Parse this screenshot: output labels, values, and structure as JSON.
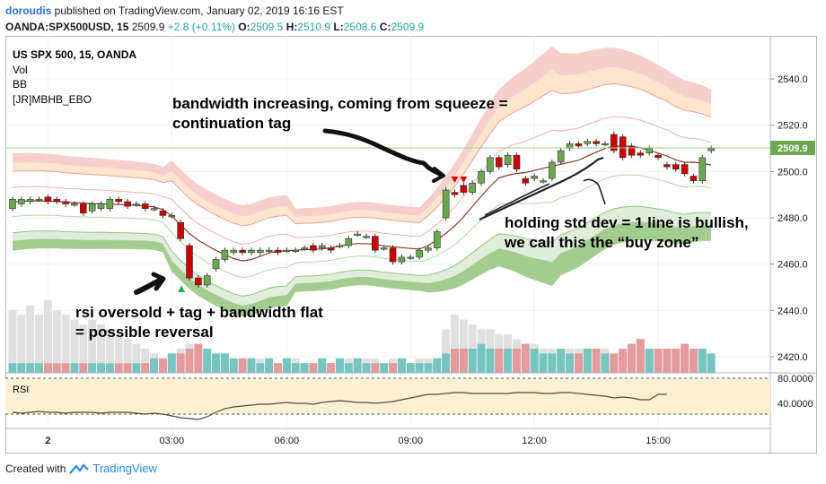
{
  "header": {
    "username": "doroudis",
    "published_text": "published on TradingView.com, January 02, 2019 16:16 EST",
    "symbol": "OANDA:SPX500USD, 15",
    "last": "2509.9",
    "change": "+2.8 (+0.11%)",
    "o_label": "O:",
    "o_value": "2509.5",
    "h_label": "H:",
    "h_value": "2510.9",
    "l_label": "L:",
    "l_value": "2508.6",
    "c_label": "C:",
    "c_value": "2509.9"
  },
  "legend": {
    "title": "US SPX 500, 15, OANDA",
    "items": [
      "Vol",
      "BB",
      "[JR]MBHB_EBO"
    ]
  },
  "annotations": [
    {
      "text": "bandwidth increasing, coming from squeeze =",
      "id": "a1"
    },
    {
      "text": "continuation tag",
      "id": "a2"
    },
    {
      "text": "holding std dev = 1 line is bullish,",
      "id": "a3"
    },
    {
      "text": "we call this the “buy zone”",
      "id": "a4"
    },
    {
      "text": "rsi oversold + tag + bandwidth flat",
      "id": "a5"
    },
    {
      "text": "= possible reversal",
      "id": "a6"
    }
  ],
  "rsi_label": "RSI",
  "price_badge": "2509.9",
  "footer": {
    "created": "Created with",
    "brand": "TradingView"
  },
  "colors": {
    "up": "#6aa84f",
    "down": "#cc0000",
    "outer_upper": "#f4c7c3",
    "inner_upper": "#fde2c4",
    "outer_lower": "#93c47d",
    "inner_lower": "#d9ead3",
    "basis": "#8b3a2e",
    "badge": "#6aa84f",
    "rsi_bg": "#fbf1d2"
  },
  "chart_data": {
    "type": "candlestick",
    "title": "US SPX 500, 15, OANDA",
    "y_axis": {
      "ticks": [
        2540.0,
        2520.0,
        2500.0,
        2480.0,
        2460.0,
        2440.0,
        2420.0
      ],
      "range": [
        2415,
        2548
      ]
    },
    "x_axis": {
      "ticks": [
        "2",
        "03:00",
        "06:00",
        "09:00",
        "12:00",
        "15:00"
      ]
    },
    "rsi": {
      "levels": [
        80.0,
        40.0
      ],
      "tick_labels": [
        "80.0000",
        "40.0000"
      ],
      "values": [
        42,
        41,
        42,
        43,
        42,
        42,
        41,
        42,
        42,
        42,
        41,
        42,
        42,
        42,
        41,
        40,
        41,
        40,
        38,
        36,
        35,
        34,
        37,
        42,
        46,
        48,
        49,
        50,
        51,
        51,
        52,
        53,
        52,
        52,
        51,
        53,
        54,
        55,
        54,
        53,
        53,
        52,
        53,
        54,
        56,
        58,
        60,
        62,
        62,
        63,
        64,
        64,
        63,
        63,
        63,
        63,
        63,
        64,
        64,
        64,
        63,
        63,
        64,
        64,
        63,
        62,
        61,
        60,
        58,
        59,
        58,
        56,
        56,
        62,
        62
      ]
    },
    "candles": [
      {
        "o": 2484,
        "c": 2488
      },
      {
        "o": 2486,
        "c": 2488
      },
      {
        "o": 2487,
        "c": 2488
      },
      {
        "o": 2488,
        "c": 2488
      },
      {
        "o": 2489,
        "c": 2487
      },
      {
        "o": 2488,
        "c": 2487
      },
      {
        "o": 2487,
        "c": 2486
      },
      {
        "o": 2486,
        "c": 2486
      },
      {
        "o": 2486,
        "c": 2482
      },
      {
        "o": 2483,
        "c": 2486
      },
      {
        "o": 2484,
        "c": 2486
      },
      {
        "o": 2484,
        "c": 2488
      },
      {
        "o": 2488,
        "c": 2487
      },
      {
        "o": 2487,
        "c": 2485
      },
      {
        "o": 2486,
        "c": 2486
      },
      {
        "o": 2486,
        "c": 2484
      },
      {
        "o": 2484,
        "c": 2484
      },
      {
        "o": 2483,
        "c": 2481
      },
      {
        "o": 2481,
        "c": 2481
      },
      {
        "o": 2478,
        "c": 2471
      },
      {
        "o": 2468,
        "c": 2454
      },
      {
        "o": 2454,
        "c": 2451
      },
      {
        "o": 2451,
        "c": 2455
      },
      {
        "o": 2458,
        "c": 2462
      },
      {
        "o": 2462,
        "c": 2466
      },
      {
        "o": 2465,
        "c": 2466
      },
      {
        "o": 2466,
        "c": 2465
      },
      {
        "o": 2465,
        "c": 2466
      },
      {
        "o": 2465,
        "c": 2466
      },
      {
        "o": 2466,
        "c": 2466
      },
      {
        "o": 2466,
        "c": 2465
      },
      {
        "o": 2466,
        "c": 2466
      },
      {
        "o": 2466,
        "c": 2466
      },
      {
        "o": 2467,
        "c": 2467
      },
      {
        "o": 2468,
        "c": 2466
      },
      {
        "o": 2467,
        "c": 2468
      },
      {
        "o": 2467,
        "c": 2466
      },
      {
        "o": 2468,
        "c": 2468
      },
      {
        "o": 2468,
        "c": 2471
      },
      {
        "o": 2473,
        "c": 2473
      },
      {
        "o": 2472,
        "c": 2472
      },
      {
        "o": 2472,
        "c": 2466
      },
      {
        "o": 2467,
        "c": 2467
      },
      {
        "o": 2467,
        "c": 2461
      },
      {
        "o": 2461,
        "c": 2463
      },
      {
        "o": 2463,
        "c": 2463
      },
      {
        "o": 2463,
        "c": 2466
      },
      {
        "o": 2466,
        "c": 2467
      },
      {
        "o": 2467,
        "c": 2474
      },
      {
        "o": 2480,
        "c": 2492
      },
      {
        "o": 2491,
        "c": 2490
      },
      {
        "o": 2494,
        "c": 2491
      },
      {
        "o": 2491,
        "c": 2495
      },
      {
        "o": 2495,
        "c": 2500
      },
      {
        "o": 2500,
        "c": 2506
      },
      {
        "o": 2506,
        "c": 2502
      },
      {
        "o": 2503,
        "c": 2507
      },
      {
        "o": 2507,
        "c": 2501
      },
      {
        "o": 2497,
        "c": 2495
      },
      {
        "o": 2497,
        "c": 2498
      },
      {
        "o": 2496,
        "c": 2496
      },
      {
        "o": 2497,
        "c": 2504
      },
      {
        "o": 2504,
        "c": 2509
      },
      {
        "o": 2510,
        "c": 2512
      },
      {
        "o": 2512,
        "c": 2511
      },
      {
        "o": 2512,
        "c": 2513
      },
      {
        "o": 2513,
        "c": 2512
      },
      {
        "o": 2512,
        "c": 2512
      },
      {
        "o": 2516,
        "c": 2509
      },
      {
        "o": 2515,
        "c": 2506
      },
      {
        "o": 2511,
        "c": 2507
      },
      {
        "o": 2508,
        "c": 2507
      },
      {
        "o": 2508,
        "c": 2510
      },
      {
        "o": 2507,
        "c": 2506
      },
      {
        "o": 2503,
        "c": 2502
      },
      {
        "o": 2503,
        "c": 2501
      },
      {
        "o": 2503,
        "c": 2499
      },
      {
        "o": 2498,
        "c": 2496
      },
      {
        "o": 2496,
        "c": 2506
      },
      {
        "o": 2509,
        "c": 2510
      }
    ],
    "volume": [
      2,
      2,
      2,
      2,
      2,
      2,
      2,
      2,
      2,
      2,
      2,
      2,
      2,
      2,
      2,
      2,
      3,
      3,
      4,
      4,
      5,
      6,
      5,
      4,
      4,
      3,
      3,
      3,
      2,
      3,
      2,
      3,
      2,
      2,
      2,
      3,
      2,
      3,
      2,
      3,
      2,
      2,
      2,
      2,
      3,
      2,
      2,
      2,
      3,
      4,
      5,
      5,
      5,
      6,
      5,
      5,
      5,
      5,
      6,
      5,
      4,
      4,
      5,
      4,
      4,
      5,
      5,
      4,
      4,
      5,
      6,
      7,
      5,
      5,
      5,
      5,
      6,
      5,
      5,
      4
    ],
    "volume_bg": [
      13,
      12,
      14,
      12,
      15,
      13,
      12,
      11,
      10,
      11,
      10,
      9,
      8,
      7,
      6,
      5,
      4,
      3,
      4,
      5,
      6,
      5,
      5,
      4,
      4,
      3,
      3,
      3,
      3,
      3,
      2,
      3,
      3,
      2,
      2,
      3,
      2,
      3,
      3,
      3,
      3,
      3,
      2,
      3,
      3,
      2,
      3,
      3,
      3,
      9,
      12,
      11,
      10,
      9,
      9,
      8,
      8,
      7,
      6,
      6,
      5,
      5,
      5,
      5,
      5,
      5,
      5,
      5,
      4,
      4,
      5,
      5,
      5,
      5,
      5,
      5,
      5,
      5,
      4,
      4
    ]
  }
}
